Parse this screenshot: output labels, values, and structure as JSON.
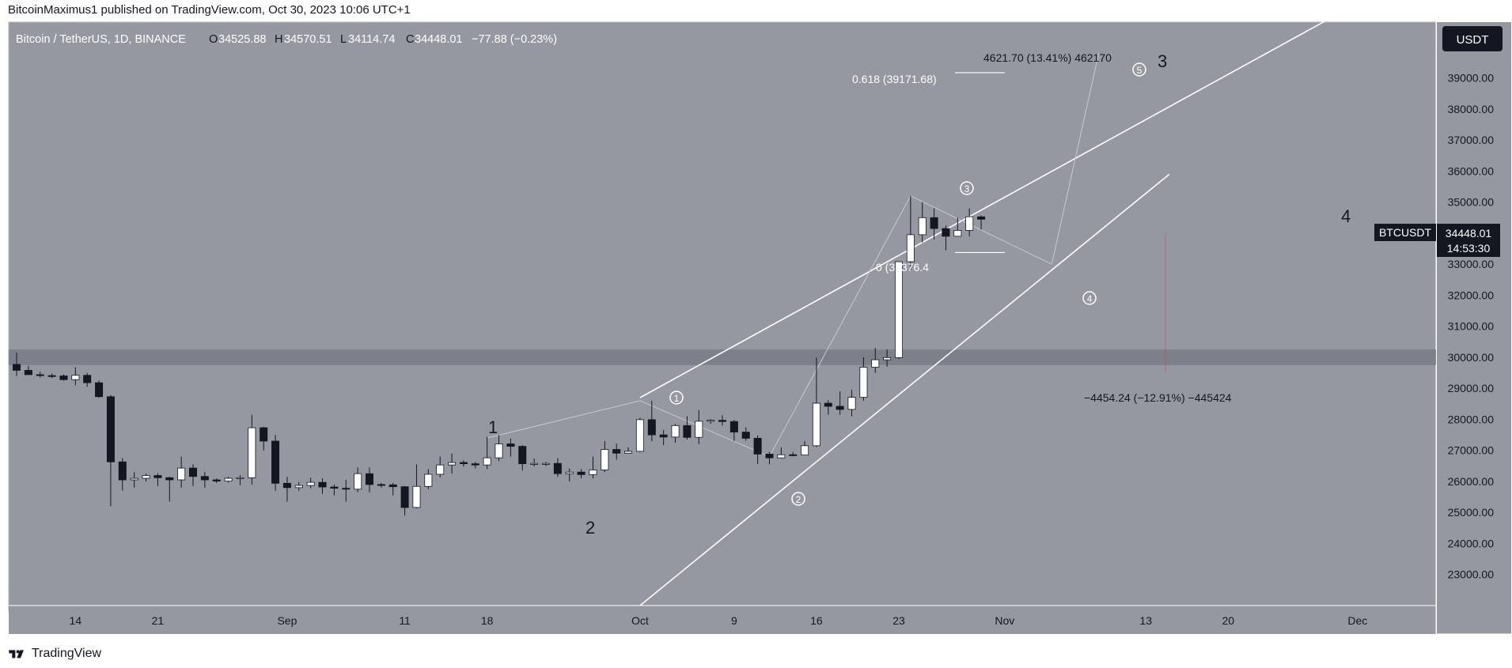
{
  "header": {
    "publisher_line": "BitcoinMaximus1 published on TradingView.com, Oct 30, 2023 10:06 UTC+1"
  },
  "legend": {
    "symbol": "Bitcoin / TetherUS, 1D, BINANCE",
    "o_label": "O",
    "o_value": "34525.88",
    "h_label": "H",
    "h_value": "34570.51",
    "l_label": "L",
    "l_value": "34114.74",
    "c_label": "C",
    "c_value": "34448.01",
    "change": "−77.88 (−0.23%)"
  },
  "currency_badge": "USDT",
  "price_tag": {
    "symbol": "BTCUSDT",
    "price": "34448.01",
    "countdown": "14:53:30"
  },
  "annotations": {
    "wave_1": "1",
    "wave_2": "2",
    "wave_3": "3",
    "wave_4": "4",
    "sub_1": "1",
    "sub_2": "2",
    "sub_3": "3",
    "sub_4": "4",
    "sub_5": "5",
    "fib_0618": "0.618 (39171.68)",
    "fib_0": "0 (33376.4",
    "measure_up": "4621.70 (13.41%) 462170",
    "measure_down": "−4454.24 (−12.91%) −445424"
  },
  "footer": {
    "brand": "TradingView"
  },
  "chart_data": {
    "type": "candlestick",
    "title": "Bitcoin / TetherUS, 1D, BINANCE",
    "ylim": [
      22000,
      40800
    ],
    "y_ticks": [
      23000,
      24000,
      25000,
      26000,
      27000,
      28000,
      29000,
      30000,
      31000,
      32000,
      33000,
      34000,
      35000,
      36000,
      37000,
      38000,
      39000
    ],
    "y_tick_labels": [
      "23000.00",
      "24000.00",
      "25000.00",
      "26000.00",
      "27000.00",
      "28000.00",
      "29000.00",
      "30000.00",
      "31000.00",
      "32000.00",
      "33000.00",
      "34000.00",
      "35000.00",
      "36000.00",
      "37000.00",
      "38000.00",
      "39000.00"
    ],
    "x_tick_labels": [
      "14",
      "21",
      "Sep",
      "11",
      "18",
      "Oct",
      "9",
      "16",
      "23",
      "Nov",
      "13",
      "20",
      "Dec"
    ],
    "x_tick_dates": [
      "2023-08-14",
      "2023-08-21",
      "2023-09-01",
      "2023-09-11",
      "2023-09-18",
      "2023-10-01",
      "2023-10-09",
      "2023-10-16",
      "2023-10-23",
      "2023-11-01",
      "2023-11-13",
      "2023-11-20",
      "2023-12-01"
    ],
    "start_date": "2023-08-09",
    "grid": false,
    "colors": {
      "background": "#9598a1",
      "up": "#ffffff",
      "down": "#131722",
      "zone": "#787b86",
      "price_tag": "#131722",
      "channel": "#ffffff"
    },
    "ohlc": [
      [
        "2023-08-09",
        29770,
        30150,
        29400,
        29580
      ],
      [
        "2023-08-10",
        29580,
        29720,
        29450,
        29440
      ],
      [
        "2023-08-11",
        29440,
        29530,
        29350,
        29410
      ],
      [
        "2023-08-12",
        29410,
        29480,
        29330,
        29400
      ],
      [
        "2023-08-13",
        29400,
        29450,
        29250,
        29280
      ],
      [
        "2023-08-14",
        29280,
        29680,
        29100,
        29420
      ],
      [
        "2023-08-15",
        29420,
        29500,
        29050,
        29180
      ],
      [
        "2023-08-16",
        29180,
        29250,
        28700,
        28730
      ],
      [
        "2023-08-17",
        28730,
        28780,
        25200,
        26630
      ],
      [
        "2023-08-18",
        26630,
        26750,
        25700,
        26050
      ],
      [
        "2023-08-19",
        26050,
        26300,
        25800,
        26100
      ],
      [
        "2023-08-20",
        26100,
        26250,
        26000,
        26190
      ],
      [
        "2023-08-21",
        26190,
        26260,
        25850,
        26120
      ],
      [
        "2023-08-22",
        26120,
        26150,
        25350,
        26050
      ],
      [
        "2023-08-23",
        26050,
        26800,
        25800,
        26430
      ],
      [
        "2023-08-24",
        26430,
        26550,
        25850,
        26160
      ],
      [
        "2023-08-25",
        26160,
        26300,
        25800,
        26050
      ],
      [
        "2023-08-26",
        26050,
        26100,
        25950,
        26010
      ],
      [
        "2023-08-27",
        26010,
        26150,
        25960,
        26100
      ],
      [
        "2023-08-28",
        26100,
        26200,
        25880,
        26120
      ],
      [
        "2023-08-29",
        26120,
        28150,
        25900,
        27730
      ],
      [
        "2023-08-30",
        27730,
        27760,
        27000,
        27300
      ],
      [
        "2023-08-31",
        27300,
        27500,
        25700,
        25940
      ],
      [
        "2023-09-01",
        25940,
        26150,
        25350,
        25800
      ],
      [
        "2023-09-02",
        25800,
        25980,
        25700,
        25870
      ],
      [
        "2023-09-03",
        25870,
        26120,
        25780,
        25970
      ],
      [
        "2023-09-04",
        25970,
        26100,
        25600,
        25820
      ],
      [
        "2023-09-05",
        25820,
        25900,
        25550,
        25780
      ],
      [
        "2023-09-06",
        25780,
        26050,
        25350,
        25750
      ],
      [
        "2023-09-07",
        25750,
        26450,
        25650,
        26250
      ],
      [
        "2023-09-08",
        26250,
        26450,
        25650,
        25900
      ],
      [
        "2023-09-09",
        25900,
        25950,
        25800,
        25890
      ],
      [
        "2023-09-10",
        25890,
        25950,
        25550,
        25830
      ],
      [
        "2023-09-11",
        25830,
        25850,
        24900,
        25160
      ],
      [
        "2023-09-12",
        25160,
        26550,
        25130,
        25840
      ],
      [
        "2023-09-13",
        25840,
        26400,
        25750,
        26230
      ],
      [
        "2023-09-14",
        26230,
        26800,
        26130,
        26530
      ],
      [
        "2023-09-15",
        26530,
        26900,
        26250,
        26610
      ],
      [
        "2023-09-16",
        26610,
        26680,
        26480,
        26570
      ],
      [
        "2023-09-17",
        26570,
        26630,
        26420,
        26530
      ],
      [
        "2023-09-18",
        26530,
        27440,
        26400,
        26760
      ],
      [
        "2023-09-19",
        26760,
        27500,
        26650,
        27210
      ],
      [
        "2023-09-20",
        27210,
        27380,
        26800,
        27130
      ],
      [
        "2023-09-21",
        27130,
        27170,
        26350,
        26570
      ],
      [
        "2023-09-22",
        26570,
        26740,
        26480,
        26580
      ],
      [
        "2023-09-23",
        26580,
        26630,
        26500,
        26580
      ],
      [
        "2023-09-24",
        26580,
        26750,
        26150,
        26250
      ],
      [
        "2023-09-25",
        26250,
        26420,
        26000,
        26300
      ],
      [
        "2023-09-26",
        26300,
        26400,
        26100,
        26220
      ],
      [
        "2023-09-27",
        26220,
        26800,
        26100,
        26370
      ],
      [
        "2023-09-28",
        26370,
        27300,
        26300,
        27030
      ],
      [
        "2023-09-29",
        27030,
        27220,
        26700,
        26910
      ],
      [
        "2023-09-30",
        26910,
        27100,
        26900,
        26970
      ],
      [
        "2023-10-01",
        26970,
        28050,
        26950,
        27990
      ],
      [
        "2023-10-02",
        27990,
        28600,
        27300,
        27500
      ],
      [
        "2023-10-03",
        27500,
        27660,
        27170,
        27430
      ],
      [
        "2023-10-04",
        27430,
        27850,
        27250,
        27800
      ],
      [
        "2023-10-05",
        27800,
        28100,
        27350,
        27420
      ],
      [
        "2023-10-06",
        27420,
        28300,
        27200,
        27940
      ],
      [
        "2023-10-07",
        27940,
        28000,
        27860,
        27970
      ],
      [
        "2023-10-08",
        27970,
        28130,
        27800,
        27930
      ],
      [
        "2023-10-09",
        27930,
        27990,
        27300,
        27590
      ],
      [
        "2023-10-10",
        27590,
        27740,
        27310,
        27390
      ],
      [
        "2023-10-11",
        27390,
        27480,
        26560,
        26880
      ],
      [
        "2023-10-12",
        26880,
        26950,
        26550,
        26760
      ],
      [
        "2023-10-13",
        26760,
        27100,
        26800,
        26860
      ],
      [
        "2023-10-14",
        26860,
        26950,
        26810,
        26850
      ],
      [
        "2023-10-15",
        26850,
        27300,
        26840,
        27150
      ],
      [
        "2023-10-16",
        27150,
        29990,
        27110,
        28520
      ],
      [
        "2023-10-17",
        28520,
        28620,
        28150,
        28420
      ],
      [
        "2023-10-18",
        28420,
        28900,
        28150,
        28320
      ],
      [
        "2023-10-19",
        28320,
        28950,
        28100,
        28710
      ],
      [
        "2023-10-20",
        28710,
        30000,
        28600,
        29680
      ],
      [
        "2023-10-21",
        29680,
        30300,
        29500,
        29920
      ],
      [
        "2023-10-22",
        29920,
        30250,
        29700,
        29990
      ],
      [
        "2023-10-23",
        29990,
        33000,
        29950,
        33080
      ],
      [
        "2023-10-24",
        33080,
        35200,
        32800,
        33950
      ],
      [
        "2023-10-25",
        33950,
        35000,
        33700,
        34500
      ],
      [
        "2023-10-26",
        34500,
        34800,
        33800,
        34150
      ],
      [
        "2023-10-27",
        34150,
        34250,
        33450,
        33900
      ],
      [
        "2023-10-28",
        33900,
        34500,
        33900,
        34090
      ],
      [
        "2023-10-29",
        34090,
        34800,
        33900,
        34530
      ],
      [
        "2023-10-30",
        34526,
        34571,
        34115,
        34448
      ]
    ],
    "x_range": [
      "2023-08-09",
      "2023-12-07"
    ],
    "resistance_zone": [
      29750,
      30250
    ],
    "channel_upper": [
      [
        "2023-10-01",
        28700
      ],
      [
        "2023-11-30",
        41200
      ]
    ],
    "channel_lower": [
      [
        "2023-10-01",
        22000
      ],
      [
        "2023-11-15",
        35900
      ]
    ],
    "wave_path": [
      [
        "2023-09-18",
        27400
      ],
      [
        "2023-10-01",
        28600
      ],
      [
        "2023-10-12",
        26800
      ],
      [
        "2023-10-24",
        35200
      ],
      [
        "2023-11-05",
        33000
      ],
      [
        "2023-11-09",
        39800
      ]
    ],
    "fib_0618": 39171.68,
    "fib_0": 33376.4,
    "current_price": 34448.01
  }
}
